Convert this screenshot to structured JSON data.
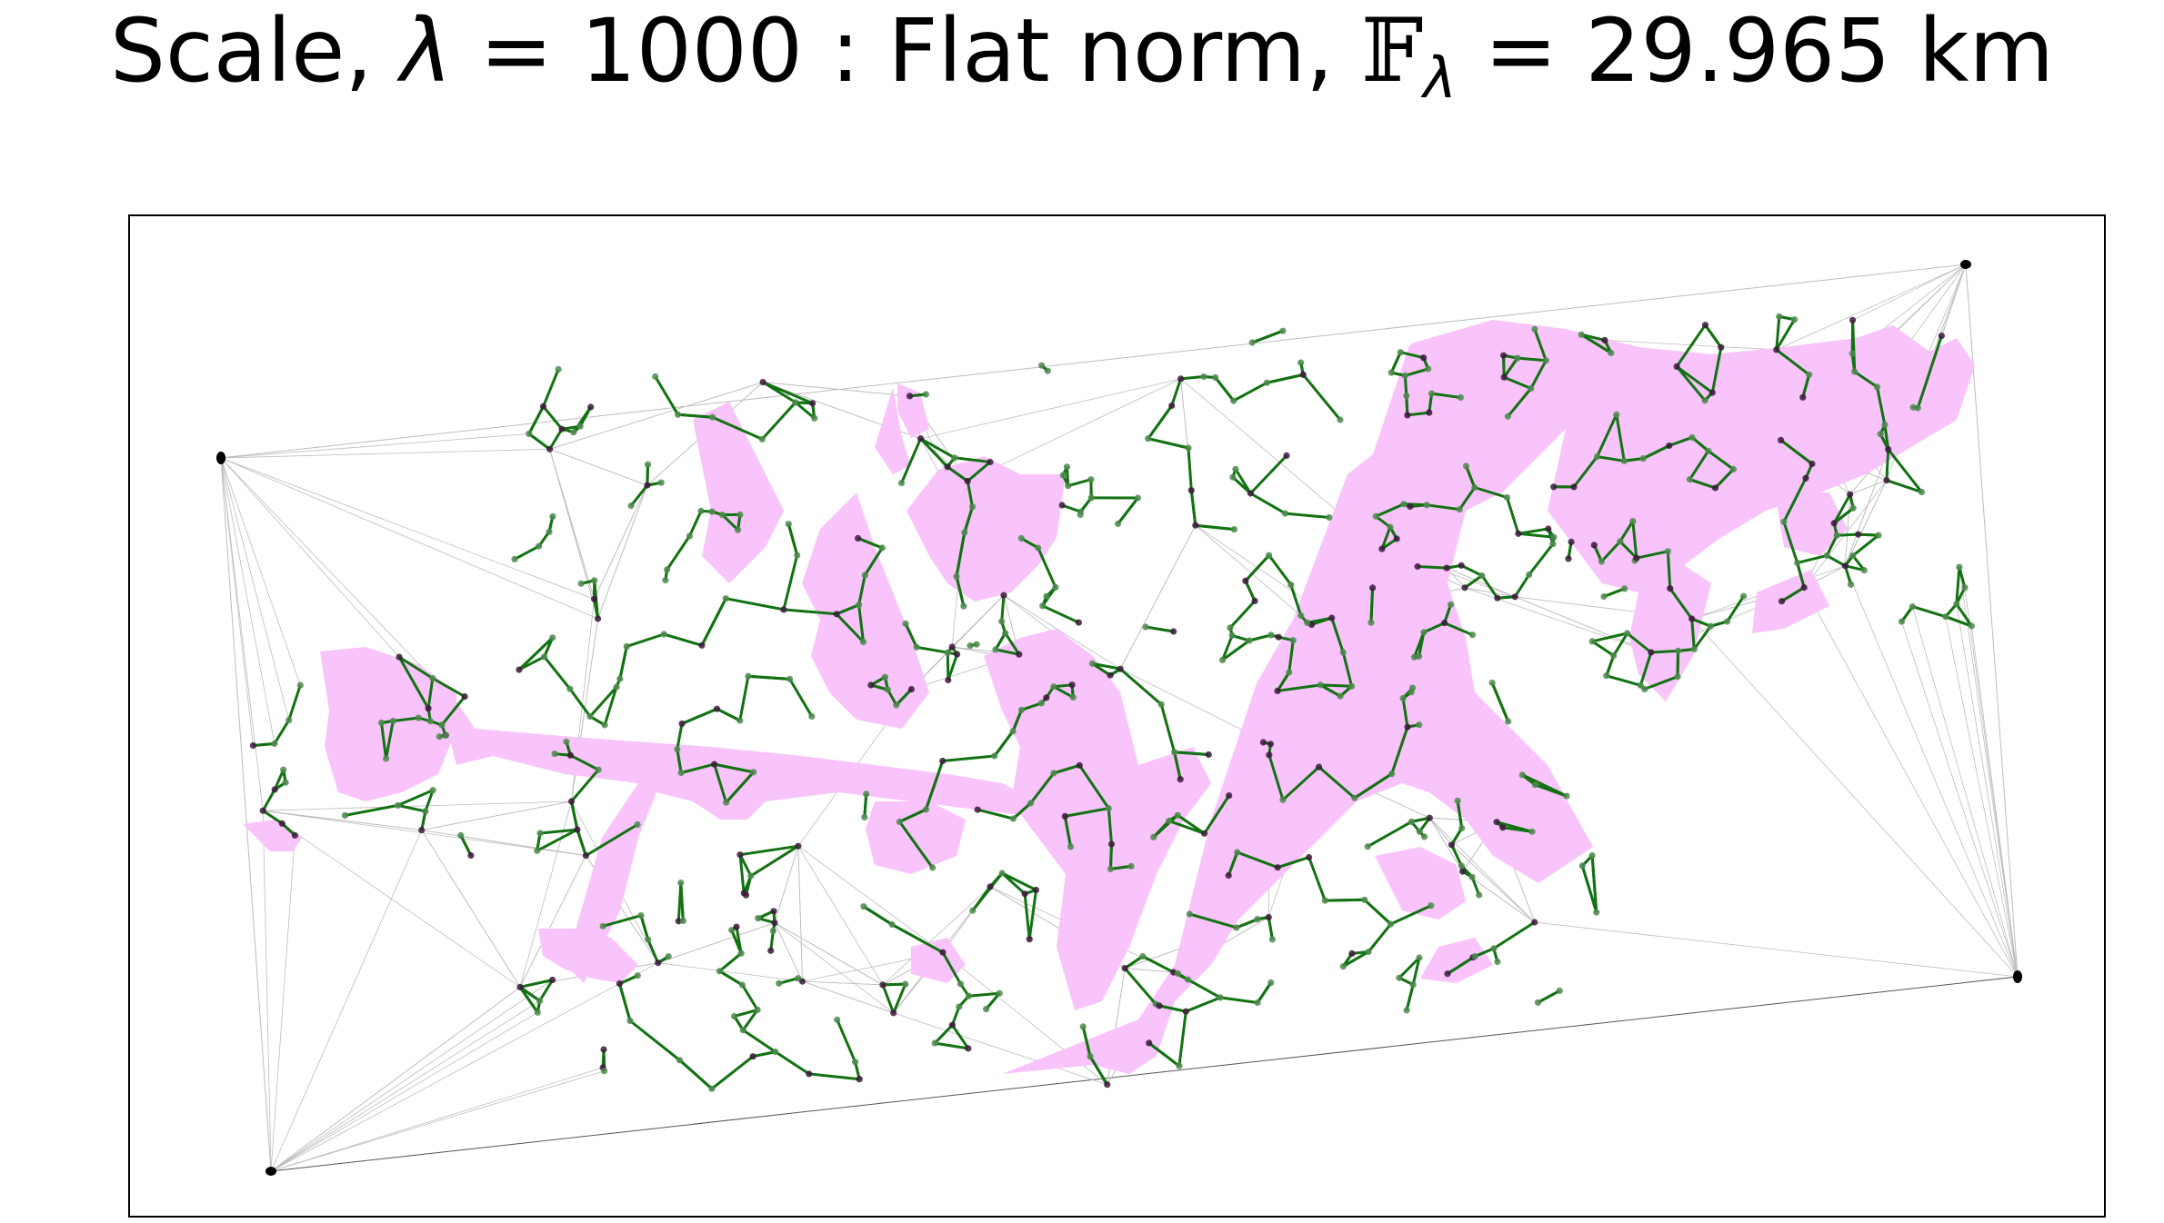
{
  "title": {
    "prefix": "Scale, ",
    "lambda_symbol": "λ",
    "scale_equals": " = ",
    "scale_value": "1000",
    "separator": "  :  ",
    "norm_label": "Flat norm, ",
    "norm_symbol": "𝔽",
    "norm_subscript": "λ",
    "norm_equals": " = ",
    "norm_value": "29.965 km"
  },
  "colors": {
    "region_fill": "#f9c3fb",
    "network_edge": "#127212",
    "node_light": "#4f8a4f",
    "node_dark": "#3d1a3d",
    "triangulation": "#bdbdbd",
    "frame": "#000000"
  },
  "legend": {
    "shown": false
  },
  "axes": {
    "ticks_shown": false,
    "grid": false
  }
}
